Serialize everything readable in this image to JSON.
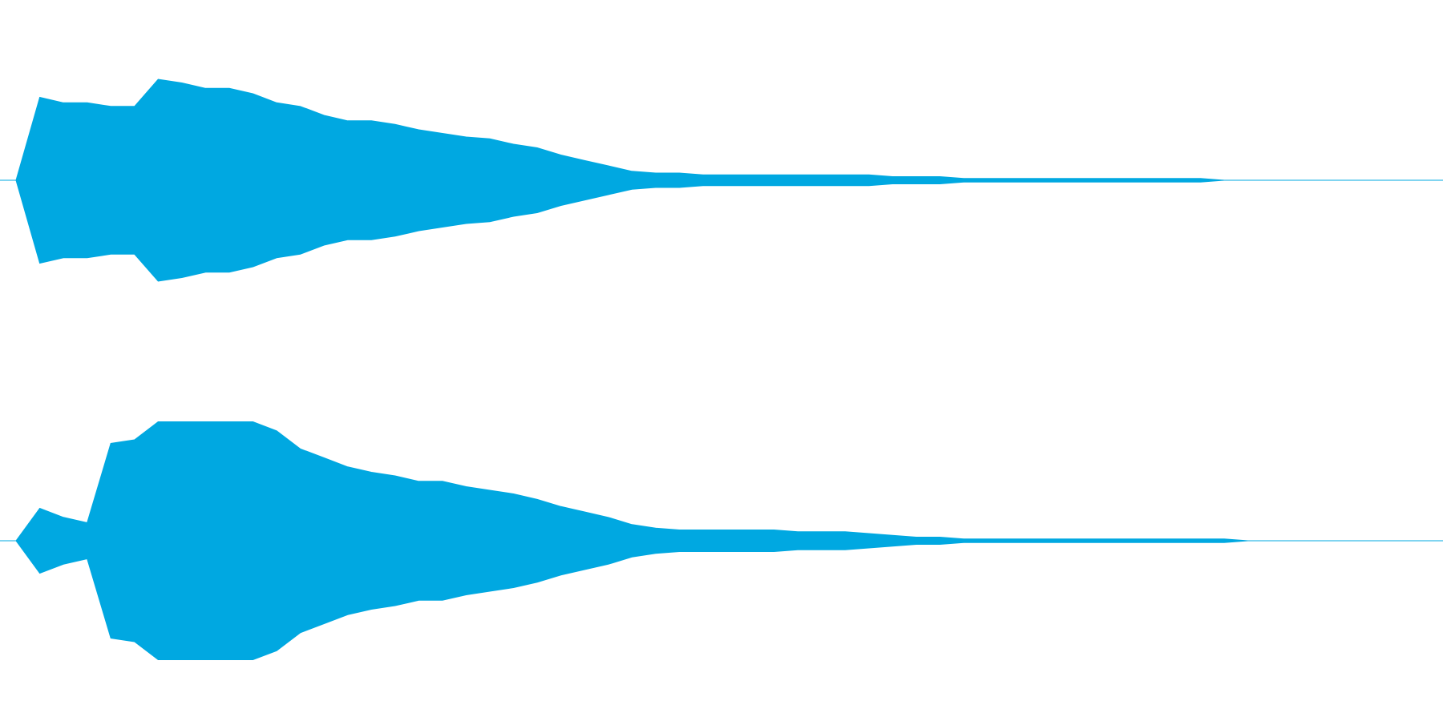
{
  "chart_data": {
    "type": "waveform",
    "color": "#00a8e1",
    "ylim": [
      -1,
      1
    ],
    "series": [
      {
        "values": [
          0,
          0.46,
          0.43,
          0.43,
          0.41,
          0.41,
          0.56,
          0.54,
          0.51,
          0.51,
          0.48,
          0.43,
          0.41,
          0.36,
          0.33,
          0.33,
          0.31,
          0.28,
          0.26,
          0.24,
          0.23,
          0.2,
          0.18,
          0.14,
          0.11,
          0.08,
          0.05,
          0.04,
          0.04,
          0.03,
          0.03,
          0.03,
          0.03,
          0.03,
          0.03,
          0.03,
          0.03,
          0.02,
          0.02,
          0.02,
          0.01,
          0.01,
          0.01,
          0.01,
          0.01,
          0.01,
          0.01,
          0.01,
          0.01,
          0.01,
          0.01,
          0,
          0,
          0,
          0,
          0,
          0,
          0,
          0,
          0,
          0
        ]
      },
      {
        "values": [
          0,
          0.18,
          0.13,
          0.1,
          0.54,
          0.56,
          0.66,
          0.66,
          0.66,
          0.66,
          0.66,
          0.61,
          0.51,
          0.46,
          0.41,
          0.38,
          0.36,
          0.33,
          0.33,
          0.3,
          0.28,
          0.26,
          0.23,
          0.19,
          0.16,
          0.13,
          0.09,
          0.07,
          0.06,
          0.06,
          0.06,
          0.06,
          0.06,
          0.05,
          0.05,
          0.05,
          0.04,
          0.03,
          0.02,
          0.02,
          0.01,
          0.01,
          0.01,
          0.01,
          0.01,
          0.01,
          0.01,
          0.01,
          0.01,
          0.01,
          0.01,
          0.01,
          0,
          0,
          0,
          0,
          0,
          0,
          0,
          0,
          0
        ]
      }
    ]
  }
}
